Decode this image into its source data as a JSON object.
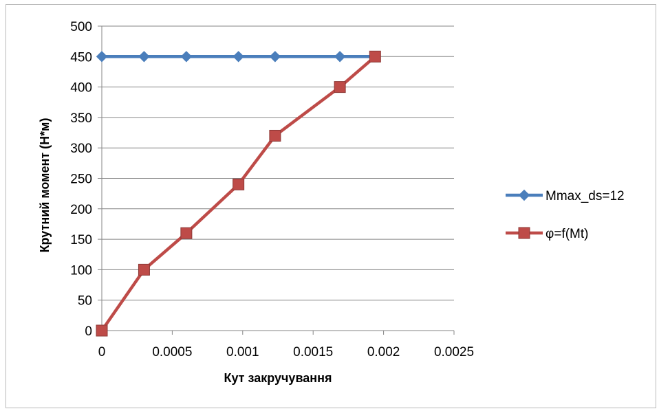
{
  "chart_data": {
    "type": "line",
    "title": "",
    "xlabel": "Кут закручування",
    "ylabel": "Крутний момент (Н*м)",
    "xlim": [
      0,
      0.0025
    ],
    "ylim": [
      0,
      500
    ],
    "x_ticks": [
      0,
      0.0005,
      0.001,
      0.0015,
      0.002,
      0.0025
    ],
    "x_tick_labels": [
      "0",
      "0.0005",
      "0.001",
      "0.0015",
      "0.002",
      "0.0025"
    ],
    "y_ticks": [
      0,
      50,
      100,
      150,
      200,
      250,
      300,
      350,
      400,
      450,
      500
    ],
    "y_tick_labels": [
      "0",
      "50",
      "100",
      "150",
      "200",
      "250",
      "300",
      "350",
      "400",
      "450",
      "500"
    ],
    "grid": "horizontal",
    "legend_position": "right",
    "series": [
      {
        "name": "Mmax_ds=12",
        "color": "#4a7ebb",
        "marker": "diamond",
        "x": [
          0,
          0.0003,
          0.0006,
          0.00097,
          0.00123,
          0.00169,
          0.00194
        ],
        "y": [
          450,
          450,
          450,
          450,
          450,
          450,
          450
        ]
      },
      {
        "name": "φ=f(Mt)",
        "color": "#be4b48",
        "marker": "square",
        "x": [
          0,
          0.0003,
          0.0006,
          0.00097,
          0.00123,
          0.00169,
          0.00194
        ],
        "y": [
          0,
          100,
          160,
          240,
          320,
          400,
          450
        ]
      }
    ]
  }
}
